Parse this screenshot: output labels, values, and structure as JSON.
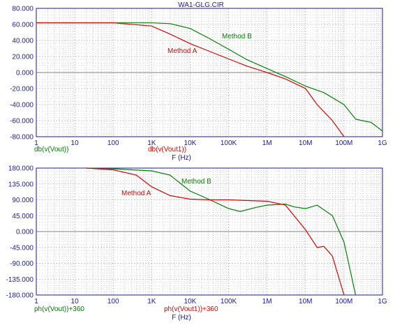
{
  "chart_data": [
    {
      "type": "line",
      "title": "WA1-GLG.CIR",
      "xlabel": "F (Hz)",
      "xscale": "log",
      "xlim": [
        1,
        1000000000
      ],
      "ylim": [
        -80,
        80
      ],
      "x_tick_labels": [
        "1",
        "10",
        "100",
        "1K",
        "10K",
        "100K",
        "1M",
        "10M",
        "100M",
        "1G"
      ],
      "y_tick_labels": [
        "80.000",
        "60.000",
        "40.000",
        "20.000",
        "0.000",
        "-20.000",
        "-40.000",
        "-60.000",
        "-80.000"
      ],
      "trace_labels": [
        "db(v(Vout))",
        "db(v(Vout1))"
      ],
      "colors": {
        "Method B": "#008000",
        "Method A": "#e00000",
        "axes": "#1a1a9a",
        "grid": "#b8b8b8"
      },
      "series": [
        {
          "name": "Method B",
          "x": [
            1,
            10,
            100,
            1000,
            3000,
            10000,
            30000,
            100000,
            300000,
            1000000,
            3000000,
            10000000,
            30000000,
            100000000,
            200000000,
            300000000,
            500000000,
            1000000000
          ],
          "y": [
            62,
            62,
            62,
            62,
            61,
            55,
            43,
            29,
            16,
            5,
            -5,
            -17,
            -25,
            -40,
            -58,
            -60,
            -62,
            -73
          ]
        },
        {
          "name": "Method A",
          "x": [
            1,
            10,
            100,
            1000,
            3000,
            10000,
            30000,
            100000,
            300000,
            1000000,
            3000000,
            10000000,
            20000000,
            50000000,
            100000000
          ],
          "y": [
            62,
            62,
            62,
            58,
            48,
            36,
            27,
            17,
            8,
            0,
            -8,
            -20,
            -40,
            -60,
            -80
          ]
        }
      ]
    },
    {
      "type": "line",
      "xlabel": "F (Hz)",
      "xscale": "log",
      "xlim": [
        1,
        1000000000
      ],
      "ylim": [
        -180,
        180
      ],
      "x_tick_labels": [
        "1",
        "10",
        "100",
        "1K",
        "10K",
        "100K",
        "1M",
        "10M",
        "100M",
        "1G"
      ],
      "y_tick_labels": [
        "180.000",
        "135.000",
        "90.000",
        "45.000",
        "0.000",
        "-45.000",
        "-90.000",
        "-135.000",
        "-180.000"
      ],
      "trace_labels": [
        "ph(v(Vout))+360",
        "ph(v(Vout1))+360"
      ],
      "series": [
        {
          "name": "Method B",
          "x": [
            20,
            100,
            1000,
            3000,
            10000,
            30000,
            100000,
            200000,
            500000,
            1000000,
            3000000,
            5000000,
            10000000,
            20000000,
            50000000,
            100000000,
            200000000
          ],
          "y": [
            180,
            178,
            172,
            160,
            115,
            92,
            65,
            57,
            68,
            75,
            78,
            70,
            65,
            75,
            45,
            -30,
            -180
          ]
        },
        {
          "name": "Method A",
          "x": [
            20,
            100,
            400,
            1000,
            3000,
            10000,
            30000,
            100000,
            1000000,
            3000000,
            10000000,
            20000000,
            30000000,
            50000000,
            100000000
          ],
          "y": [
            180,
            175,
            160,
            127,
            102,
            92,
            90,
            90,
            86,
            75,
            5,
            -45,
            -42,
            -70,
            -180
          ]
        }
      ]
    }
  ]
}
